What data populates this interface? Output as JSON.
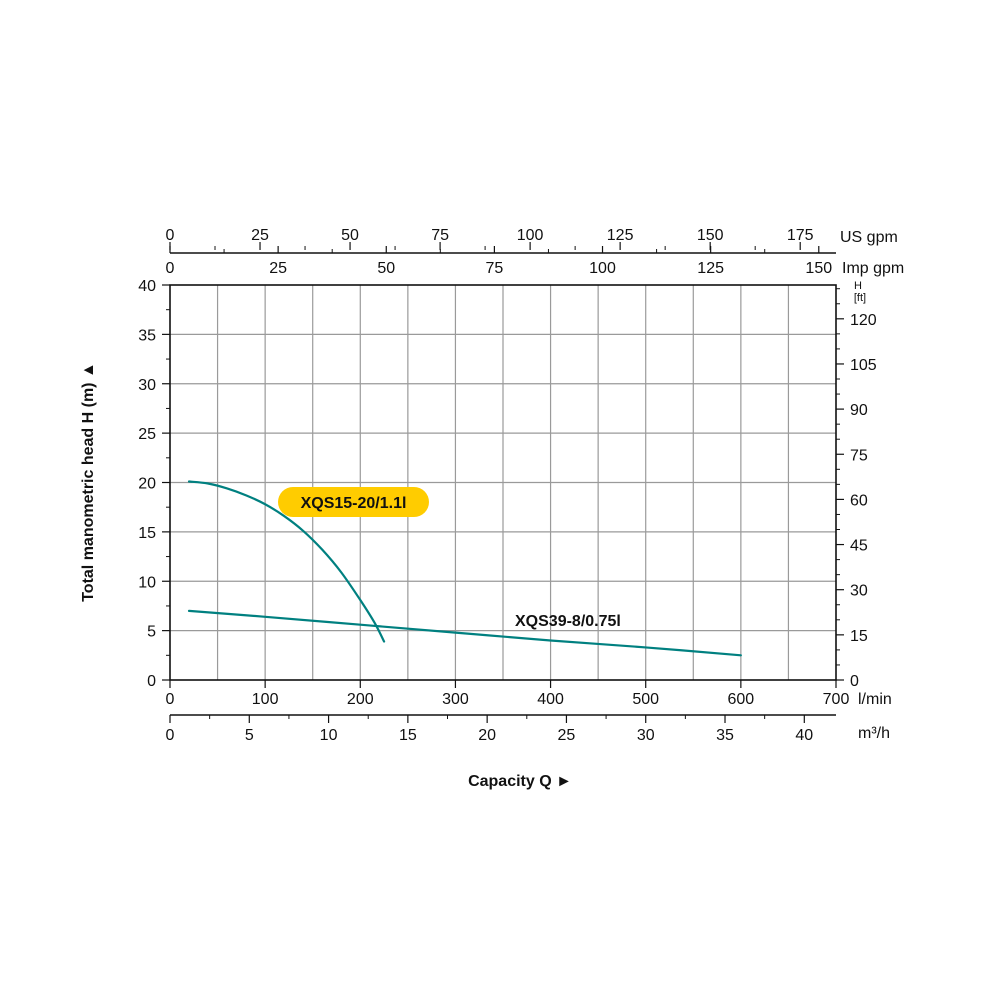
{
  "chart_data": {
    "type": "line",
    "ylabel": "Total manometric head H (m)",
    "ylabel_arrow": "▲",
    "xlabel": "Capacity Q",
    "xlabel_arrow": "►",
    "grid": true,
    "xlim": [
      0,
      700
    ],
    "ylim": [
      0,
      40
    ],
    "x_ticks": [
      0,
      100,
      200,
      300,
      400,
      500,
      600,
      700
    ],
    "y_ticks": [
      0,
      5,
      10,
      15,
      20,
      25,
      30,
      35,
      40
    ],
    "x_unit": "l/min",
    "y_unit": "m",
    "secondary_axes": {
      "us_gpm": {
        "unit": "US gpm",
        "ticks": [
          0,
          25,
          50,
          75,
          100,
          125,
          150,
          175
        ],
        "lpm_per_unit": 3.785
      },
      "imp_gpm": {
        "unit": "Imp gpm",
        "ticks": [
          0,
          25,
          50,
          75,
          100,
          125,
          150
        ],
        "lpm_per_unit": 4.546
      },
      "m3h": {
        "unit": "m³/h",
        "ticks": [
          0,
          5,
          10,
          15,
          20,
          25,
          30,
          35,
          40
        ],
        "lpm_per_unit": 16.667
      },
      "ft": {
        "unit_top": "H",
        "unit_bottom": "[ft]",
        "ticks": [
          0,
          15,
          30,
          45,
          60,
          75,
          90,
          105,
          120
        ],
        "m_per_unit": 0.3048
      }
    },
    "series": [
      {
        "name": "XQS15-20/1.1l",
        "color": "#008080",
        "highlight": "#FFCC00",
        "x": [
          20,
          40,
          60,
          80,
          100,
          120,
          140,
          160,
          180,
          200,
          215,
          225
        ],
        "y": [
          20.1,
          19.9,
          19.4,
          18.7,
          17.8,
          16.6,
          15.1,
          13.2,
          10.9,
          8.1,
          5.8,
          3.9
        ]
      },
      {
        "name": "XQS39-8/0.75l",
        "color": "#008080",
        "x": [
          20,
          100,
          200,
          300,
          400,
          500,
          600
        ],
        "y": [
          7.0,
          6.4,
          5.6,
          4.8,
          4.0,
          3.3,
          2.5
        ]
      }
    ]
  }
}
